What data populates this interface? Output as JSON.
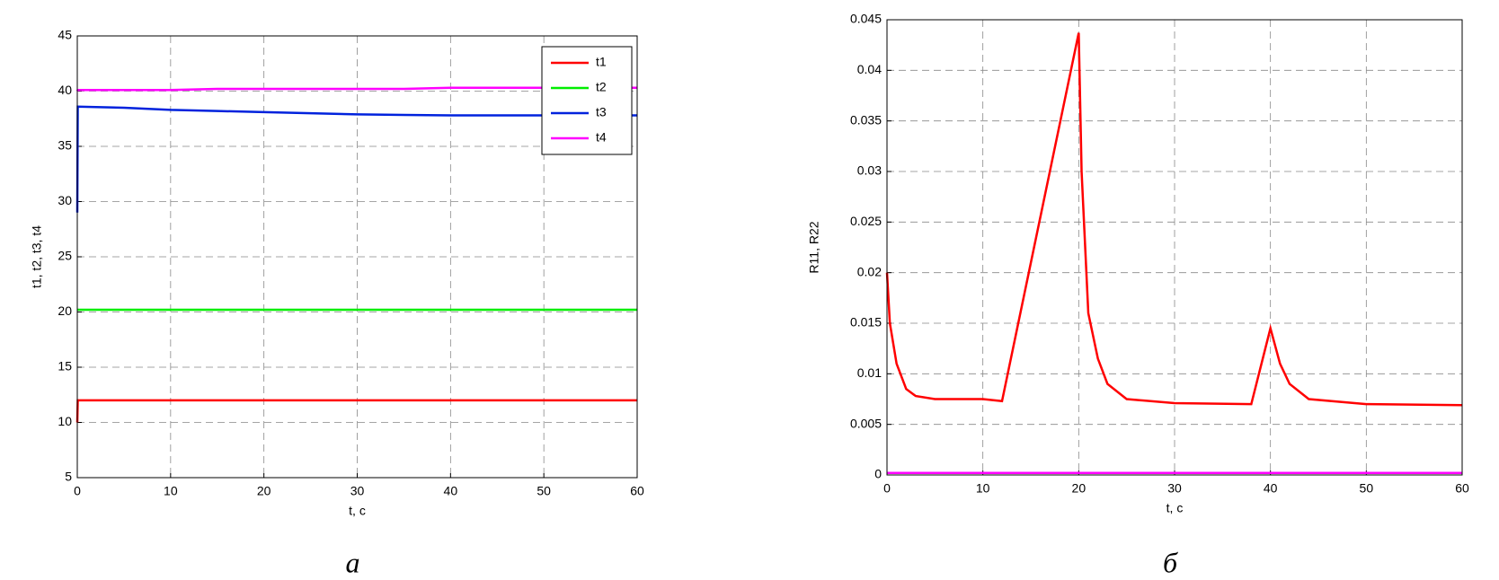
{
  "chart_data": [
    {
      "type": "line",
      "caption": "а",
      "xlabel": "t, c",
      "ylabel": "t1, t2, t3, t4",
      "x": [
        0,
        0.05,
        5,
        10,
        15,
        20,
        25,
        30,
        35,
        40,
        45,
        50,
        55,
        60
      ],
      "series": [
        {
          "name": "t1",
          "color": "#ff0000",
          "values": [
            10,
            12,
            12,
            12,
            12,
            12,
            12,
            12,
            12,
            12,
            12,
            12,
            12,
            12
          ]
        },
        {
          "name": "t2",
          "color": "#00ee00",
          "values": [
            20.2,
            20.2,
            20.2,
            20.2,
            20.2,
            20.2,
            20.2,
            20.2,
            20.2,
            20.2,
            20.2,
            20.2,
            20.2,
            20.2
          ]
        },
        {
          "name": "t3",
          "color": "#0022dd",
          "values": [
            29,
            38.6,
            38.5,
            38.3,
            38.2,
            38.1,
            38,
            37.9,
            37.85,
            37.8,
            37.8,
            37.8,
            37.8,
            37.8
          ]
        },
        {
          "name": "t4",
          "color": "#ff00ff",
          "values": [
            40,
            40.1,
            40.1,
            40.1,
            40.2,
            40.2,
            40.2,
            40.2,
            40.2,
            40.3,
            40.3,
            40.3,
            40.3,
            40.3
          ]
        }
      ],
      "xlim": [
        0,
        60
      ],
      "xticks": [
        0,
        10,
        20,
        30,
        40,
        50,
        60
      ],
      "ylim": [
        5,
        45
      ],
      "yticks": [
        5,
        10,
        15,
        20,
        25,
        30,
        35,
        40,
        45
      ],
      "grid": true,
      "legend": "upper right"
    },
    {
      "type": "line",
      "caption": "б",
      "xlabel": "t, c",
      "ylabel": "R11, R22",
      "x": [
        0,
        0.3,
        1,
        2,
        3,
        5,
        10,
        12,
        20,
        20.3,
        21,
        22,
        23,
        25,
        30,
        38,
        40,
        41,
        42,
        44,
        50,
        60
      ],
      "series": [
        {
          "color": "#ff0000",
          "values": [
            0.02,
            0.015,
            0.011,
            0.0085,
            0.0078,
            0.0075,
            0.0075,
            0.0073,
            0.0437,
            0.03,
            0.016,
            0.0115,
            0.009,
            0.0075,
            0.0071,
            0.007,
            0.0145,
            0.011,
            0.009,
            0.0075,
            0.007,
            0.0069
          ]
        },
        {
          "color": "#ff00ff",
          "values": [
            0.0002,
            0.0002,
            0.0002,
            0.0002,
            0.0002,
            0.0002,
            0.0002,
            0.0002,
            0.0002,
            0.0002,
            0.0002,
            0.0002,
            0.0002,
            0.0002,
            0.0002,
            0.0002,
            0.0002,
            0.0002,
            0.0002,
            0.0002,
            0.0002,
            0.0002
          ]
        }
      ],
      "xlim": [
        0,
        60
      ],
      "xticks": [
        0,
        10,
        20,
        30,
        40,
        50,
        60
      ],
      "ylim": [
        0,
        0.045
      ],
      "yticks": [
        0,
        0.005,
        0.01,
        0.015,
        0.02,
        0.025,
        0.03,
        0.035,
        0.04,
        0.045
      ],
      "grid": true
    }
  ]
}
